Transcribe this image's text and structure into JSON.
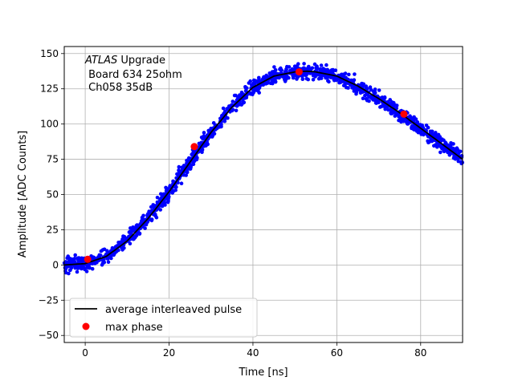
{
  "chart_data": {
    "type": "scatter",
    "xlabel": "Time [ns]",
    "ylabel": "Amplitude [ADC Counts]",
    "xlim": [
      -5,
      90
    ],
    "ylim": [
      -55,
      155
    ],
    "x_ticks": [
      0,
      20,
      40,
      60,
      80
    ],
    "y_ticks": [
      -50,
      -25,
      0,
      25,
      50,
      75,
      100,
      125,
      150
    ],
    "grid": true,
    "annotation": {
      "experiment": "ATLAS",
      "experiment_suffix": " Upgrade",
      "line2": " Board 634 25ohm",
      "line3": " Ch058 35dB"
    },
    "legend": {
      "placement": "lower-left",
      "entries": [
        {
          "label": "average interleaved pulse",
          "color": "#000000",
          "marker": "line"
        },
        {
          "label": "max phase",
          "color": "#ff0000",
          "marker": "circle"
        }
      ]
    },
    "series": [
      {
        "kind": "scatter",
        "color": "#0000ff",
        "description_source": "dense cloud of samples scattered about the average pulse, spread about ±8 counts",
        "x_start": -5,
        "x_end": 90,
        "n_points": 1400,
        "spread": 8
      },
      {
        "name": "average interleaved pulse",
        "kind": "line",
        "color": "#000000",
        "x": [
          -5,
          0,
          5,
          10,
          15,
          20,
          25,
          30,
          35,
          40,
          45,
          50,
          53,
          55,
          60,
          65,
          70,
          75,
          80,
          85,
          90
        ],
        "y": [
          0,
          1,
          6,
          17,
          33,
          52,
          73,
          94,
          112,
          126,
          134,
          137,
          137.5,
          137,
          134,
          127,
          118,
          108,
          97,
          86,
          75
        ]
      },
      {
        "name": "max phase",
        "kind": "scatter",
        "color": "#ff0000",
        "x": [
          0.6,
          26,
          51,
          76
        ],
        "y": [
          4,
          84,
          137,
          107
        ]
      }
    ]
  }
}
